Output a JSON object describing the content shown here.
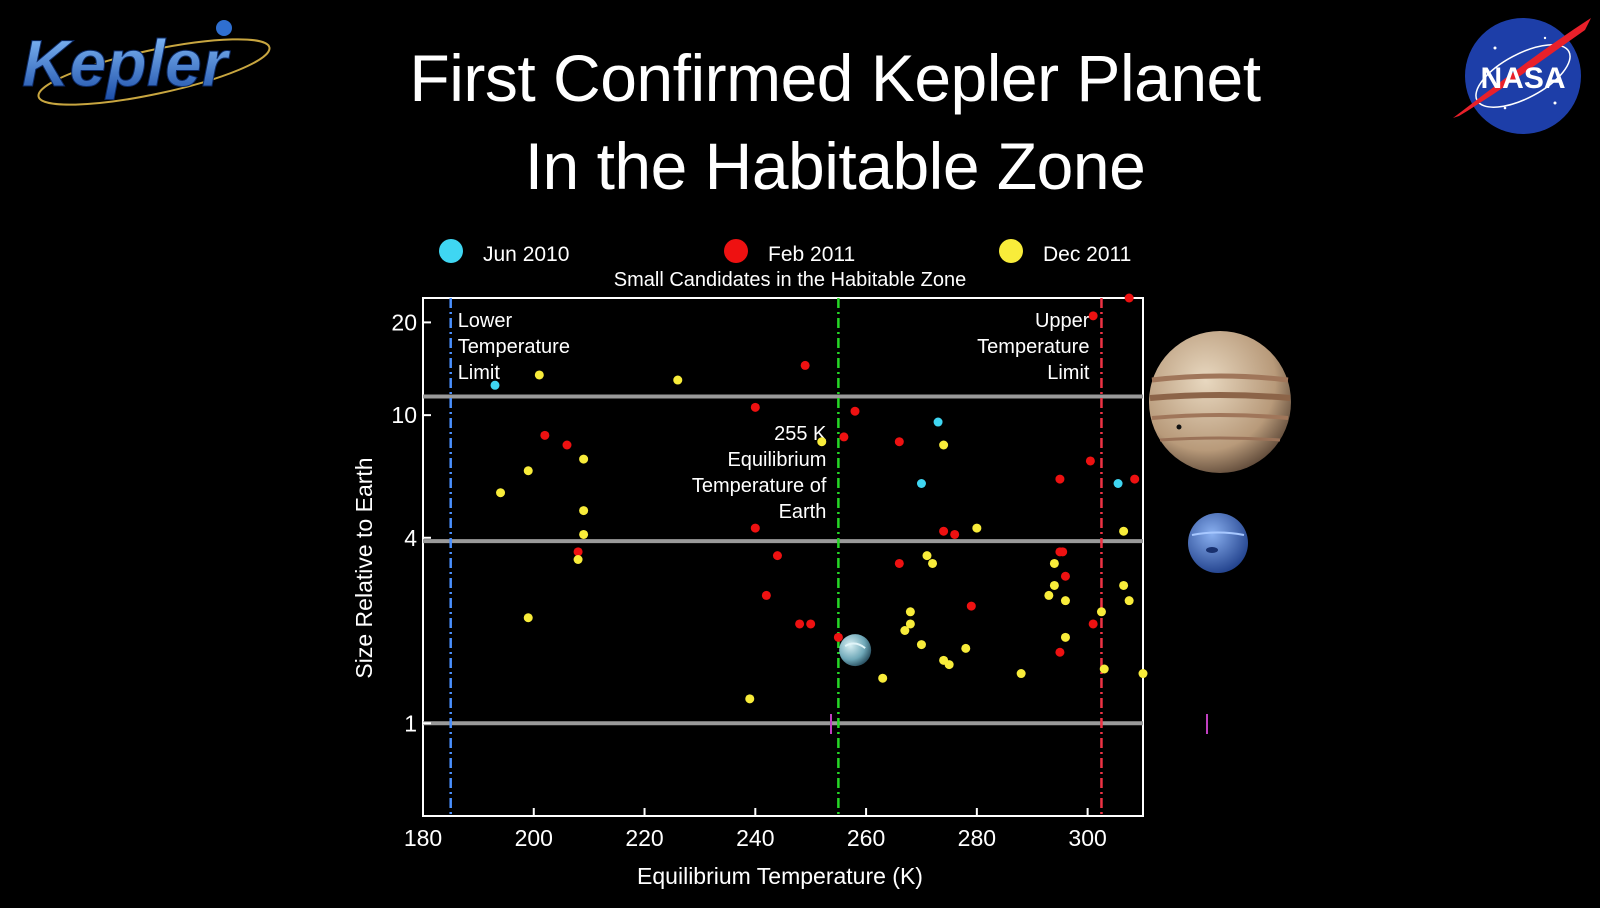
{
  "header": {
    "kepler_logo_text": "Kepler",
    "nasa_logo_text": "NASA",
    "title_line1": "First Confirmed Kepler Planet",
    "title_line2": "In the Habitable Zone"
  },
  "colors": {
    "background": "#000000",
    "cyan": "#3fd6f2",
    "red": "#ee1111",
    "yellow": "#f8ec3a",
    "lower_limit": "#4a90ff",
    "earth_line": "#26d626",
    "upper_limit": "#ee3344",
    "hline": "#9a9a9a"
  },
  "chart_data": {
    "type": "scatter",
    "title": "Small Candidates in the Habitable Zone",
    "xlabel": "Equilibrium Temperature (K)",
    "ylabel": "Size Relative to Earth",
    "xlim": [
      180,
      310
    ],
    "ylim": [
      0.5,
      24
    ],
    "yscale": "log",
    "xticks": [
      180,
      200,
      220,
      240,
      260,
      280,
      300
    ],
    "yticks": [
      1,
      4,
      10,
      20
    ],
    "grid": false,
    "legend_position": "top",
    "series": [
      {
        "name": "Jun 2010",
        "color": "cyan",
        "points": [
          [
            193,
            12.5
          ],
          [
            273,
            9.5
          ],
          [
            270,
            6.0
          ],
          [
            305.5,
            6.0
          ]
        ]
      },
      {
        "name": "Feb 2011",
        "color": "red",
        "points": [
          [
            202,
            8.6
          ],
          [
            206,
            8.0
          ],
          [
            208,
            3.6
          ],
          [
            240,
            10.6
          ],
          [
            240,
            4.3
          ],
          [
            244,
            3.5
          ],
          [
            242,
            2.6
          ],
          [
            248,
            2.1
          ],
          [
            250,
            2.1
          ],
          [
            249,
            14.5
          ],
          [
            255,
            1.9
          ],
          [
            256,
            8.5
          ],
          [
            258,
            10.3
          ],
          [
            266,
            8.2
          ],
          [
            266,
            3.3
          ],
          [
            274,
            4.2
          ],
          [
            276,
            4.1
          ],
          [
            279,
            2.4
          ],
          [
            295,
            3.6
          ],
          [
            295.5,
            3.6
          ],
          [
            296,
            3.0
          ],
          [
            295,
            6.2
          ],
          [
            300.5,
            7.1
          ],
          [
            301,
            2.1
          ],
          [
            295,
            1.7
          ],
          [
            301,
            21.0
          ],
          [
            307.5,
            24.0
          ],
          [
            308.5,
            6.2
          ]
        ]
      },
      {
        "name": "Dec 2011",
        "color": "yellow",
        "points": [
          [
            194,
            5.6
          ],
          [
            199,
            6.6
          ],
          [
            199,
            2.2
          ],
          [
            201,
            13.5
          ],
          [
            209,
            7.2
          ],
          [
            209,
            4.9
          ],
          [
            209,
            4.1
          ],
          [
            208,
            3.4
          ],
          [
            226,
            13.0
          ],
          [
            239,
            1.2
          ],
          [
            252,
            8.2
          ],
          [
            263,
            1.4
          ],
          [
            267,
            2.0
          ],
          [
            268,
            2.1
          ],
          [
            268,
            2.3
          ],
          [
            270,
            1.8
          ],
          [
            271,
            3.5
          ],
          [
            272,
            3.3
          ],
          [
            274,
            8.0
          ],
          [
            274,
            1.6
          ],
          [
            275,
            1.55
          ],
          [
            278,
            1.75
          ],
          [
            280,
            4.3
          ],
          [
            288,
            1.45
          ],
          [
            293,
            2.6
          ],
          [
            294,
            3.3
          ],
          [
            294,
            2.8
          ],
          [
            296,
            2.5
          ],
          [
            296,
            1.9
          ],
          [
            302.5,
            2.3
          ],
          [
            303,
            1.5
          ],
          [
            306.5,
            4.2
          ],
          [
            306.5,
            2.8
          ],
          [
            307.5,
            2.5
          ],
          [
            310,
            1.45
          ]
        ]
      }
    ],
    "horizontal_lines": [
      11.5,
      3.9,
      1.0
    ],
    "vertical_lines": [
      {
        "x": 185,
        "color": "lower_limit",
        "label": [
          "Lower",
          "Temperature",
          "Limit"
        ],
        "label_side": "right"
      },
      {
        "x": 255,
        "color": "earth_line",
        "label": [
          "255 K",
          "Equilibrium",
          "Temperature of",
          "Earth"
        ],
        "label_side": "left"
      },
      {
        "x": 302.5,
        "color": "upper_limit",
        "label": [
          "Upper",
          "Temperature",
          "Limit"
        ],
        "label_side": "left"
      }
    ],
    "earth_marker": {
      "x": 255.5,
      "y": 1.78
    },
    "reference_planets": [
      {
        "name": "Jupiter",
        "y": 11.5
      },
      {
        "name": "Neptune",
        "y": 3.9
      }
    ]
  }
}
